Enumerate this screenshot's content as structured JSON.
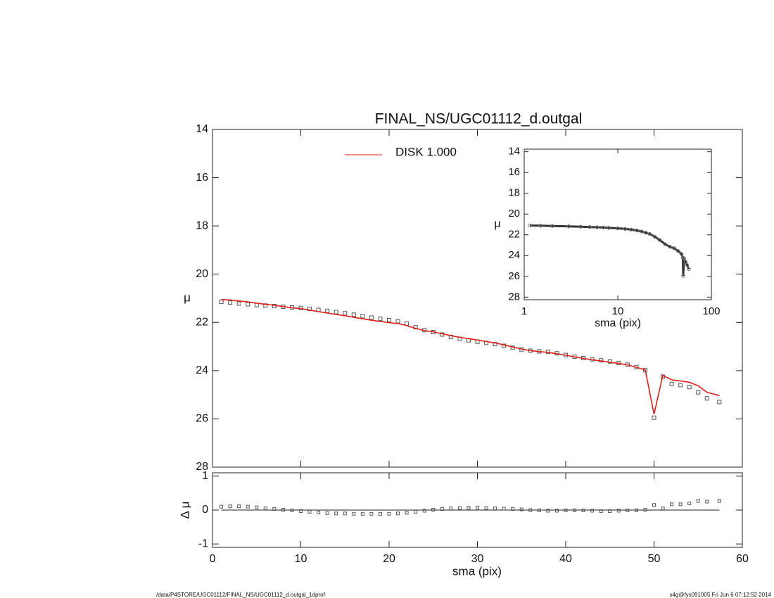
{
  "chart_data": [
    {
      "type": "line",
      "title": "FINAL_NS/UGC01112_d.outgal",
      "ylabel": "μ",
      "x": [
        1,
        2,
        3,
        4,
        5,
        6,
        7,
        8,
        9,
        10,
        11,
        12,
        13,
        14,
        15,
        16,
        17,
        18,
        19,
        20,
        21,
        22,
        23,
        24,
        25,
        26,
        27,
        28,
        29,
        30,
        31,
        32,
        33,
        34,
        35,
        36,
        37,
        38,
        39,
        40,
        41,
        42,
        43,
        44,
        45,
        46,
        47,
        48,
        49,
        50,
        51,
        52,
        53,
        54,
        55,
        56,
        57.4
      ],
      "series": [
        {
          "color": "#555555",
          "marker": "square",
          "values": [
            21.15,
            21.18,
            21.22,
            21.25,
            21.28,
            21.3,
            21.32,
            21.35,
            21.38,
            21.4,
            21.44,
            21.48,
            21.52,
            21.57,
            21.62,
            21.68,
            21.74,
            21.8,
            21.85,
            21.9,
            21.95,
            22.05,
            22.2,
            22.32,
            22.4,
            22.5,
            22.6,
            22.68,
            22.74,
            22.8,
            22.85,
            22.9,
            22.97,
            23.05,
            23.12,
            23.17,
            23.2,
            23.22,
            23.28,
            23.35,
            23.42,
            23.48,
            23.53,
            23.57,
            23.62,
            23.68,
            23.75,
            23.85,
            23.98,
            25.95,
            24.25,
            24.55,
            24.6,
            24.68,
            24.9,
            25.15,
            25.3
          ]
        },
        {
          "name": "DISK  1.000",
          "color": "#e0201b",
          "values": [
            21.05,
            21.07,
            21.11,
            21.15,
            21.2,
            21.25,
            21.29,
            21.34,
            21.39,
            21.43,
            21.49,
            21.55,
            21.61,
            21.67,
            21.72,
            21.79,
            21.85,
            21.91,
            21.96,
            22.01,
            22.05,
            22.13,
            22.25,
            22.34,
            22.39,
            22.47,
            22.55,
            22.62,
            22.67,
            22.73,
            22.79,
            22.85,
            22.93,
            23.02,
            23.1,
            23.17,
            23.21,
            23.24,
            23.3,
            23.36,
            23.43,
            23.49,
            23.55,
            23.6,
            23.65,
            23.7,
            23.76,
            23.86,
            23.97,
            25.8,
            24.2,
            24.38,
            24.43,
            24.48,
            24.63,
            24.9,
            25.03
          ]
        }
      ],
      "xlim": [
        0,
        60
      ],
      "ylim": [
        28,
        14
      ],
      "yticks": [
        14,
        16,
        18,
        20,
        22,
        24,
        26,
        28
      ]
    },
    {
      "type": "scatter",
      "ylabel": "Δ μ",
      "xlabel": "sma (pix)",
      "x": [
        1,
        2,
        3,
        4,
        5,
        6,
        7,
        8,
        9,
        10,
        11,
        12,
        13,
        14,
        15,
        16,
        17,
        18,
        19,
        20,
        21,
        22,
        23,
        24,
        25,
        26,
        27,
        28,
        29,
        30,
        31,
        32,
        33,
        34,
        35,
        36,
        37,
        38,
        39,
        40,
        41,
        42,
        43,
        44,
        45,
        46,
        47,
        48,
        49,
        50,
        51,
        52,
        53,
        54,
        55,
        56,
        57.4
      ],
      "values": [
        0.1,
        0.11,
        0.11,
        0.1,
        0.08,
        0.05,
        0.03,
        0.01,
        -0.01,
        -0.03,
        -0.05,
        -0.07,
        -0.09,
        -0.1,
        -0.1,
        -0.11,
        -0.11,
        -0.11,
        -0.11,
        -0.11,
        -0.1,
        -0.08,
        -0.05,
        -0.02,
        0.01,
        0.03,
        0.05,
        0.06,
        0.07,
        0.07,
        0.06,
        0.05,
        0.04,
        0.03,
        0.02,
        0,
        -0.01,
        -0.02,
        -0.02,
        -0.01,
        -0.01,
        -0.01,
        -0.02,
        -0.03,
        -0.03,
        -0.02,
        -0.01,
        -0.01,
        0.01,
        0.15,
        0.05,
        0.17,
        0.17,
        0.2,
        0.27,
        0.25,
        0.27
      ],
      "color": "#555555",
      "xlim": [
        0,
        60
      ],
      "xticks": [
        0,
        10,
        20,
        30,
        40,
        50,
        60
      ],
      "ylim": [
        -1.1,
        1.1
      ],
      "yticks": [
        -1,
        0,
        1
      ]
    },
    {
      "type": "line",
      "xlabel": "sma (pix)",
      "ylabel": "μ",
      "log_x": true,
      "x": [
        1.15,
        1.5,
        2,
        3,
        4,
        5,
        6,
        7,
        8,
        10,
        12,
        14,
        16,
        18,
        20,
        22,
        25,
        28,
        32,
        36,
        40,
        44,
        48,
        49.5,
        50,
        51,
        53,
        55,
        57.4
      ],
      "values": [
        21.1,
        21.12,
        21.15,
        21.18,
        21.22,
        21.25,
        21.27,
        21.3,
        21.33,
        21.38,
        21.43,
        21.5,
        21.58,
        21.68,
        21.8,
        21.92,
        22.2,
        22.5,
        22.9,
        23.15,
        23.3,
        23.55,
        23.85,
        24.2,
        25.95,
        24.25,
        24.6,
        24.9,
        25.3
      ],
      "color": "#555555",
      "xlim": [
        1,
        100
      ],
      "xticks": [
        1,
        10,
        100
      ],
      "ylim": [
        28.25,
        13.75
      ],
      "yticks": [
        14,
        16,
        18,
        20,
        22,
        24,
        26,
        28
      ]
    }
  ],
  "footer": {
    "left": "/data/P4STORE/UGC01112/FINAL_NS/UGC01112_d.outgal_1dprof",
    "right": "s4g@fys091005  Fri Jun  6 07:12:52 2014"
  }
}
